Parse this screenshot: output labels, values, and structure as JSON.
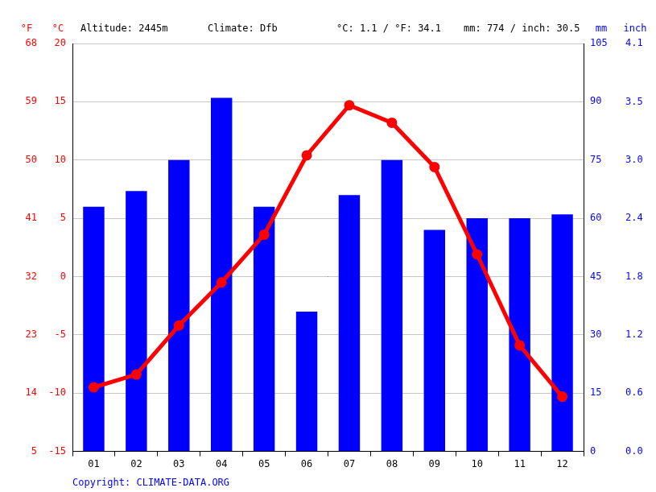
{
  "chart_data": {
    "type": "bar",
    "header": [
      "Altitude: 2445m",
      "Climate: Dfb",
      "°C: 1.1 / °F: 34.1",
      "mm: 774 / inch: 30.5"
    ],
    "footer": "Copyright: CLIMATE-DATA.ORG",
    "categories": [
      "01",
      "02",
      "03",
      "04",
      "05",
      "06",
      "07",
      "08",
      "09",
      "10",
      "11",
      "12"
    ],
    "y_label": "°C",
    "ylim": [
      -15,
      20
    ],
    "yticks": [
      -15,
      -10,
      -5,
      0,
      5,
      10,
      15,
      20
    ],
    "fahrenheit_axis": {
      "label": "°F",
      "lim": [
        5,
        68
      ],
      "ticks": [
        5,
        14,
        23,
        32,
        41,
        50,
        59,
        68
      ]
    },
    "y2_label": "mm",
    "y2lim": [
      0,
      105
    ],
    "y2ticks": [
      0,
      15,
      30,
      45,
      60,
      75,
      90,
      105
    ],
    "inch_axis": {
      "label": "inch",
      "lim": [
        0,
        4.134
      ],
      "ticks": [
        {
          "value": 0,
          "label": "0.0"
        },
        {
          "value": 0.591,
          "label": "0.6"
        },
        {
          "value": 1.181,
          "label": "1.2"
        },
        {
          "value": 1.772,
          "label": "1.8"
        },
        {
          "value": 2.362,
          "label": "2.4"
        },
        {
          "value": 2.953,
          "label": "3.0"
        },
        {
          "value": 3.543,
          "label": "3.5"
        },
        {
          "value": 4.134,
          "label": "4.1"
        }
      ]
    },
    "grid": true,
    "series": [
      {
        "type": "line",
        "color": "#ff0000",
        "marker": "circle",
        "values": [
          -9.5,
          -8.4,
          -4.2,
          -0.5,
          3.6,
          10.4,
          14.7,
          13.2,
          9.4,
          1.9,
          -5.9,
          -10.3
        ]
      },
      {
        "type": "bar",
        "color": "#0000ff",
        "axis": "y2",
        "values": [
          63,
          67,
          75,
          91,
          63,
          36,
          66,
          75,
          57,
          60,
          60,
          61
        ]
      }
    ]
  }
}
